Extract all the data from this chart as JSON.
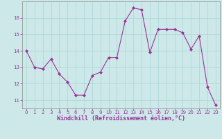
{
  "x": [
    0,
    1,
    2,
    3,
    4,
    5,
    6,
    7,
    8,
    9,
    10,
    11,
    12,
    13,
    14,
    15,
    16,
    17,
    18,
    19,
    20,
    21,
    22,
    23
  ],
  "y": [
    14.0,
    13.0,
    12.9,
    13.5,
    12.6,
    12.1,
    11.3,
    11.3,
    12.5,
    12.7,
    13.6,
    13.6,
    15.8,
    16.6,
    16.5,
    13.9,
    15.3,
    15.3,
    15.3,
    15.1,
    14.1,
    14.9,
    11.8,
    10.7
  ],
  "line_color": "#993399",
  "marker": "D",
  "marker_size": 2,
  "bg_color": "#cce8e8",
  "grid_color": "#aad4d4",
  "xlabel": "Windchill (Refroidissement éolien,°C)",
  "tick_color": "#993399",
  "ylim": [
    10.5,
    17.0
  ],
  "xlim": [
    -0.5,
    23.5
  ],
  "xticks": [
    0,
    1,
    2,
    3,
    4,
    5,
    6,
    7,
    8,
    9,
    10,
    11,
    12,
    13,
    14,
    15,
    16,
    17,
    18,
    19,
    20,
    21,
    22,
    23
  ],
  "yticks": [
    11,
    12,
    13,
    14,
    15,
    16
  ],
  "spine_color": "#888888",
  "tick_fontsize": 5,
  "xlabel_fontsize": 6
}
